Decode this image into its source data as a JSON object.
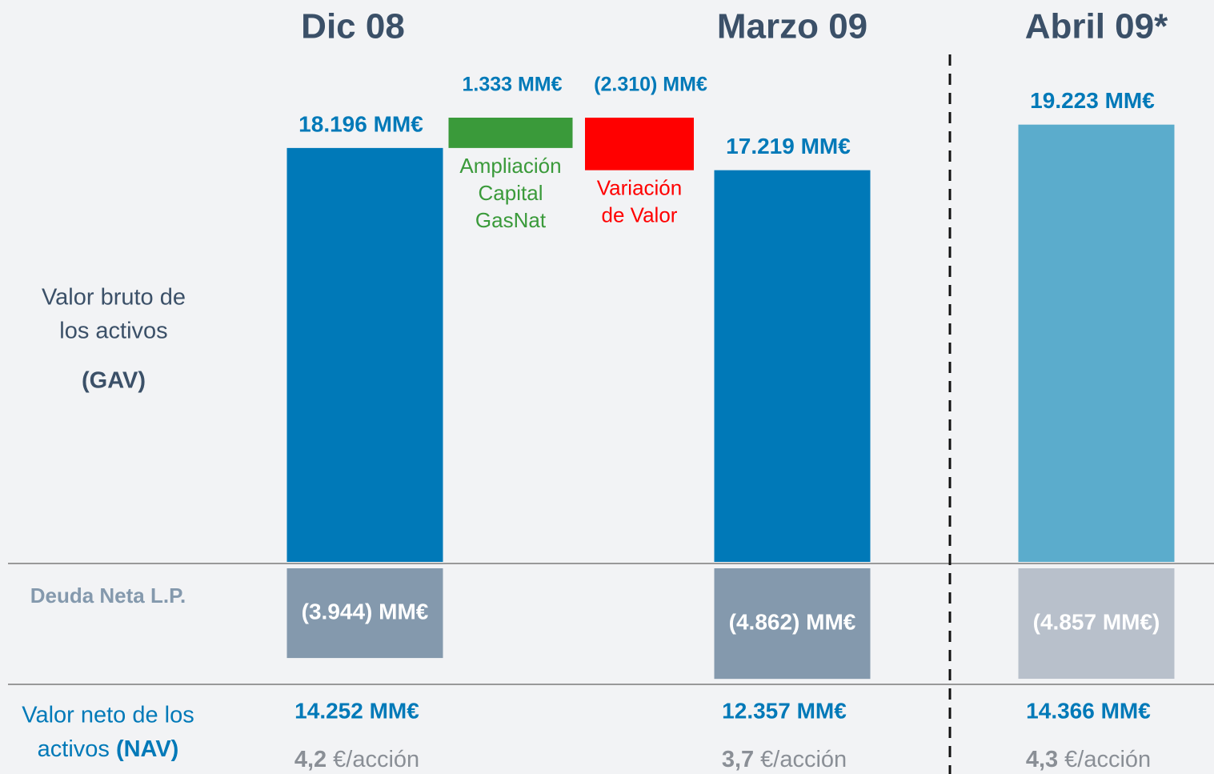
{
  "chart_data": {
    "type": "waterfall",
    "totals": [
      {
        "name": "Dic 08",
        "gav": 18196,
        "gav_label": "18.196 MM€",
        "gav_color": "#0079b8",
        "debt": -3944,
        "debt_label": "(3.944) MM€",
        "debt_color": "#8499ad",
        "nav": 14252,
        "nav_label": "14.252 MM€",
        "per_share": 4.2,
        "per_share_label": "4,2"
      },
      {
        "name": "Marzo 09",
        "gav": 17219,
        "gav_label": "17.219 MM€",
        "gav_color": "#0079b8",
        "debt": -4862,
        "debt_label": "(4.862) MM€",
        "debt_color": "#8499ad",
        "nav": 12357,
        "nav_label": "12.357 MM€",
        "per_share": 3.7,
        "per_share_label": "3,7"
      },
      {
        "name": "Abril 09*",
        "gav": 19223,
        "gav_label": "19.223 MM€",
        "gav_color": "#5baccc",
        "debt": -4857,
        "debt_label": "(4.857 MM€)",
        "debt_color": "#b8c0cb",
        "nav": 14366,
        "nav_label": "14.366 MM€",
        "per_share": 4.3,
        "per_share_label": "4,3"
      }
    ],
    "steps": [
      {
        "name": [
          "Ampliación",
          "Capital",
          "GasNat"
        ],
        "value": 1333,
        "value_label": "1.333 MM€",
        "color": "#3a9a3a"
      },
      {
        "name": [
          "Variación",
          "de Valor"
        ],
        "value": -2310,
        "value_label": "(2.310) MM€",
        "color": "#ff0000"
      }
    ],
    "per_share_unit": "€/acción",
    "row_labels": {
      "gav": [
        "Valor bruto de",
        "los activos"
      ],
      "gav_abbr": "(GAV)",
      "debt": "Deuda Neta L.P.",
      "nav": [
        "Valor neto de los",
        "activos"
      ],
      "nav_abbr": "(NAV)"
    }
  }
}
